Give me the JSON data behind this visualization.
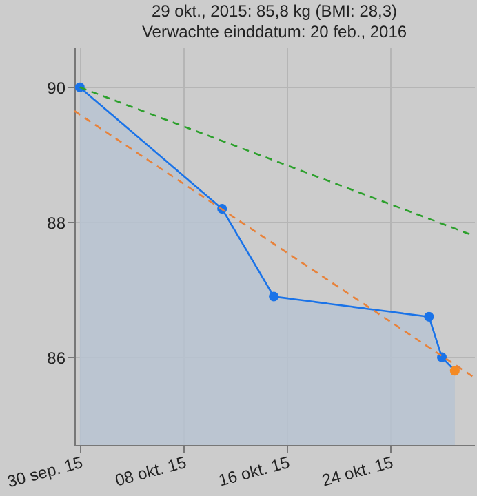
{
  "chart_data": {
    "type": "area",
    "title": "29 okt., 2015: 85,8 kg (BMI: 28,3)",
    "subtitle": "Verwachte einddatum: 20 feb., 2016",
    "series": [
      {
        "color": "#1a73e8",
        "marker": "circle",
        "colors": [
          "#1a73e8",
          "#1a73e8",
          "#1a73e8",
          "#1a73e8",
          "#1a73e8",
          "#f58a23"
        ],
        "x": [
          "2015-09-30",
          "2015-10-11",
          "2015-10-15",
          "2015-10-27",
          "2015-10-28",
          "2015-10-29"
        ],
        "values": [
          90.0,
          88.2,
          86.9,
          86.6,
          86.0,
          85.8
        ]
      },
      {
        "type": "line",
        "color": "#2ca02c",
        "line_style": "dashed",
        "marker": "none",
        "x": [
          "2015-09-30",
          "2015-10-30T12:00"
        ],
        "values": [
          90.0,
          87.8
        ]
      },
      {
        "type": "line",
        "color": "#e8823a",
        "line_style": "dashed",
        "marker": "none",
        "x": [
          "2015-09-29T14:00",
          "2015-10-30T12:00"
        ],
        "values": [
          89.65,
          85.7
        ]
      }
    ],
    "xlim": [
      "2015-09-29T14:00",
      "2015-10-30T12:00"
    ],
    "ylim": [
      84.7,
      90.6
    ],
    "xticks": [
      {
        "value": "2015-09-30",
        "label": "30 sep. 15"
      },
      {
        "value": "2015-10-08",
        "label": "08 okt. 15"
      },
      {
        "value": "2015-10-16",
        "label": "16 okt. 15"
      },
      {
        "value": "2015-10-24",
        "label": "24 okt. 15"
      }
    ],
    "yticks": [
      86,
      88,
      90
    ],
    "grid": true
  }
}
